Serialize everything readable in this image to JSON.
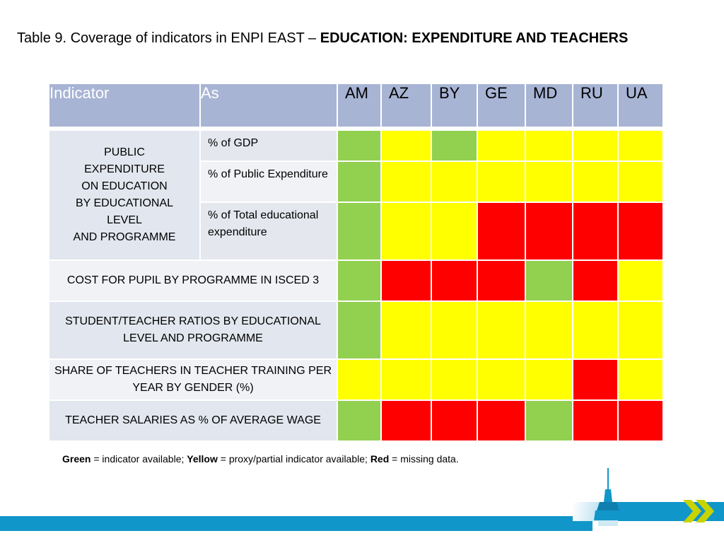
{
  "title": {
    "prefix": "Table 9. Coverage of indicators in ENPI EAST – ",
    "bold": "EDUCATION: EXPENDITURE AND TEACHERS"
  },
  "table": {
    "headers": {
      "indicator": "Indicator",
      "as": "As",
      "countries": [
        "AM",
        "AZ",
        "BY",
        "GE",
        "MD",
        "RU",
        "UA"
      ]
    },
    "group": {
      "lines": [
        "PUBLIC",
        "EXPENDITURE",
        "ON EDUCATION",
        "BY EDUCATIONAL",
        "LEVEL",
        "AND PROGRAMME"
      ],
      "rows": [
        {
          "as": "% of GDP",
          "cells": [
            "G",
            "Y",
            "G",
            "Y",
            "Y",
            "Y",
            "Y"
          ]
        },
        {
          "as": "% of Public Expenditure",
          "cells": [
            "G",
            "Y",
            "Y",
            "Y",
            "Y",
            "Y",
            "Y"
          ]
        },
        {
          "as": "% of Total educational expenditure",
          "cells": [
            "G",
            "Y",
            "Y",
            "R",
            "R",
            "R",
            "R"
          ]
        }
      ]
    },
    "rows": [
      {
        "label": "COST FOR PUPIL BY PROGRAMME IN ISCED 3",
        "cells": [
          "G",
          "R",
          "R",
          "R",
          "G",
          "R",
          "Y"
        ]
      },
      {
        "label": "STUDENT/TEACHER RATIOS BY EDUCATIONAL LEVEL AND PROGRAMME",
        "cells": [
          "G",
          "Y",
          "Y",
          "Y",
          "Y",
          "Y",
          "Y"
        ]
      },
      {
        "label": "SHARE OF TEACHERS IN TEACHER TRAINING PER YEAR BY GENDER (%)",
        "cells": [
          "Y",
          "Y",
          "Y",
          "Y",
          "Y",
          "R",
          "Y"
        ]
      },
      {
        "label": "TEACHER SALARIES AS % OF AVERAGE WAGE",
        "cells": [
          "G",
          "R",
          "R",
          "R",
          "G",
          "R",
          "R"
        ]
      }
    ]
  },
  "legend": {
    "green": "Green",
    "green_text": " = indicator available; ",
    "yellow": "Yellow",
    "yellow_text": " = proxy/partial indicator available; ",
    "red": "Red",
    "red_text": " = missing data."
  },
  "colors": {
    "G": "#92d050",
    "Y": "#ffff00",
    "R": "#ff0000",
    "header": "#a8b4d4",
    "accent": "#1196c9"
  },
  "icons": [
    "tower-icon",
    "double-chevron-icon"
  ]
}
